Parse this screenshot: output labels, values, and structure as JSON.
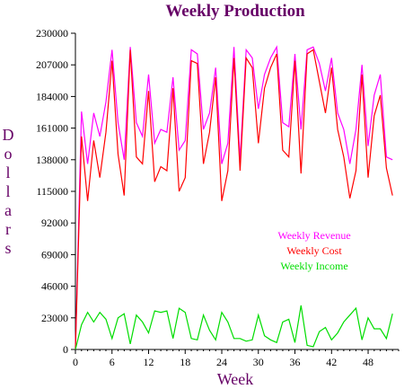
{
  "chart_data": {
    "type": "line",
    "title": "Weekly Production",
    "xlabel": "Week",
    "ylabel": "Dollars",
    "xlim": [
      0,
      53
    ],
    "ylim": [
      0,
      230000
    ],
    "x_ticks": [
      0,
      6,
      12,
      18,
      24,
      30,
      36,
      42,
      48
    ],
    "y_ticks": [
      0,
      23000,
      46000,
      69000,
      92000,
      115000,
      138000,
      161000,
      184000,
      207000,
      230000
    ],
    "y_tick_labels": [
      "0",
      "23000",
      "46000",
      "69000",
      "92000",
      "115000",
      "138000",
      "161000",
      "184000",
      "207000",
      "230000"
    ],
    "grid": false,
    "legend_position": "lower-right",
    "x": [
      0,
      1,
      2,
      3,
      4,
      5,
      6,
      7,
      8,
      9,
      10,
      11,
      12,
      13,
      14,
      15,
      16,
      17,
      18,
      19,
      20,
      21,
      22,
      23,
      24,
      25,
      26,
      27,
      28,
      29,
      30,
      31,
      32,
      33,
      34,
      35,
      36,
      37,
      38,
      39,
      40,
      41,
      42,
      43,
      44,
      45,
      46,
      47,
      48,
      49,
      50,
      51,
      52
    ],
    "series": [
      {
        "name": "Weekly Revenue",
        "color": "#ff00ff",
        "values": [
          0,
          173000,
          135000,
          172000,
          155000,
          180000,
          218000,
          165000,
          138000,
          220000,
          165000,
          155000,
          200000,
          150000,
          160000,
          158000,
          198000,
          145000,
          152000,
          218000,
          215000,
          160000,
          172000,
          205000,
          135000,
          150000,
          220000,
          138000,
          218000,
          212000,
          175000,
          200000,
          212000,
          220000,
          165000,
          162000,
          215000,
          160000,
          218000,
          220000,
          208000,
          188000,
          212000,
          172000,
          160000,
          135000,
          160000,
          207000,
          148000,
          185000,
          200000,
          140000,
          138000
        ]
      },
      {
        "name": "Weekly Cost",
        "color": "#ff0000",
        "values": [
          0,
          155000,
          108000,
          152000,
          125000,
          158000,
          210000,
          142000,
          112000,
          218000,
          140000,
          135000,
          188000,
          122000,
          133000,
          130000,
          190000,
          115000,
          125000,
          210000,
          208000,
          135000,
          158000,
          198000,
          108000,
          130000,
          212000,
          130000,
          212000,
          205000,
          150000,
          190000,
          205000,
          215000,
          145000,
          140000,
          210000,
          128000,
          215000,
          218000,
          195000,
          172000,
          205000,
          160000,
          140000,
          110000,
          130000,
          200000,
          125000,
          170000,
          185000,
          132000,
          112000
        ]
      },
      {
        "name": "Weekly Income",
        "color": "#00dd00",
        "values": [
          0,
          18000,
          27000,
          20000,
          27000,
          22000,
          8000,
          23000,
          26000,
          4000,
          25000,
          20000,
          12000,
          28000,
          27000,
          28000,
          8000,
          30000,
          27000,
          8000,
          7000,
          25000,
          14000,
          7000,
          27000,
          20000,
          8000,
          8000,
          6000,
          7000,
          25000,
          10000,
          7000,
          5000,
          20000,
          22000,
          5000,
          32000,
          3000,
          2000,
          13000,
          16000,
          7000,
          12000,
          20000,
          25000,
          30000,
          7000,
          23000,
          15000,
          15000,
          8000,
          26000
        ]
      }
    ]
  }
}
